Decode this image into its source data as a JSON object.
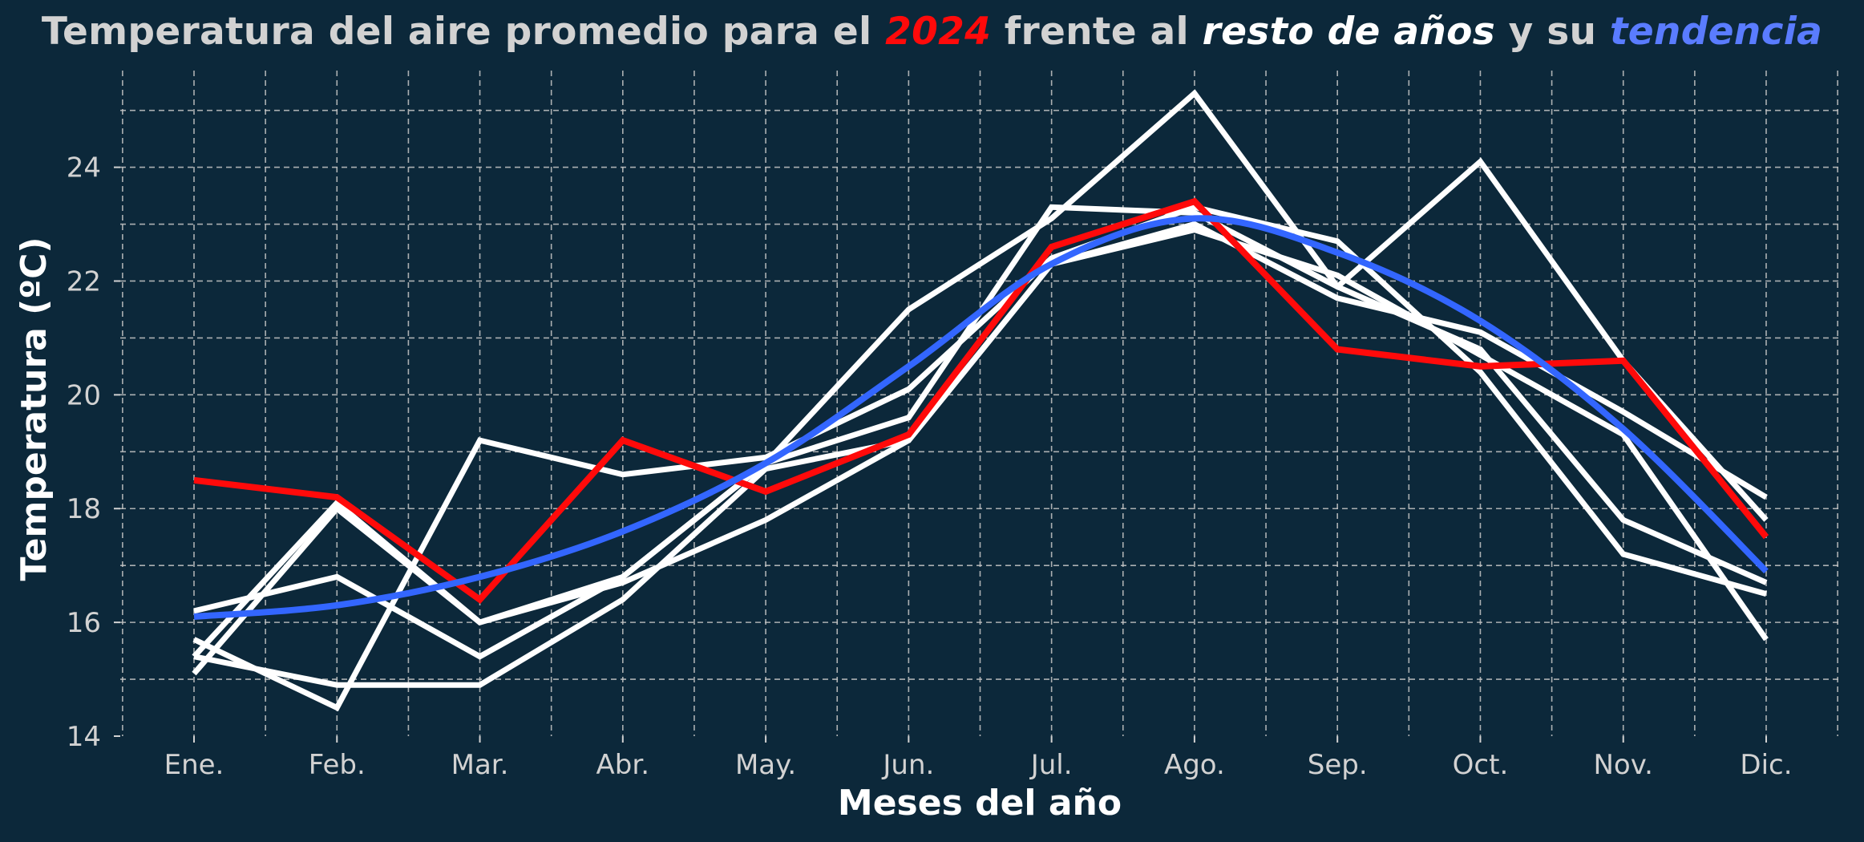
{
  "title": {
    "part1": "Temperatura del aire promedio para el ",
    "highlight_year": "2024",
    "part2": " frente al ",
    "highlight_rest": "resto de años",
    "part3": " y su ",
    "highlight_trend": "tendencia"
  },
  "chart_data": {
    "type": "line",
    "title": "Temperatura del aire promedio para el 2024 frente al resto de años y su tendencia",
    "xlabel": "Meses del año",
    "ylabel": "Temperatura (ºC)",
    "categories": [
      "Ene.",
      "Feb.",
      "Mar.",
      "Abr.",
      "May.",
      "Jun.",
      "Jul.",
      "Ago.",
      "Sep.",
      "Oct.",
      "Nov.",
      "Dic."
    ],
    "ylim": [
      14,
      25.7
    ],
    "yticks": [
      14,
      16,
      18,
      20,
      22,
      24
    ],
    "grid": "on",
    "colors": {
      "background": "#0c283a",
      "other_years": "#ffffff",
      "year_2024": "#ff0a0a",
      "trend": "#3366ff",
      "grid": "#c8c8c8",
      "text": "#d2d2d2"
    },
    "series": [
      {
        "values": [
          15.1,
          18.0,
          16.0,
          16.8,
          18.8,
          19.6,
          23.3,
          23.2,
          21.9,
          24.1,
          20.6,
          17.8
        ],
        "role": "other"
      },
      {
        "values": [
          16.2,
          16.8,
          15.4,
          16.8,
          18.8,
          21.5,
          23.1,
          25.3,
          21.9,
          20.8,
          17.8,
          16.7
        ],
        "role": "other"
      },
      {
        "values": [
          15.7,
          14.5,
          19.2,
          18.6,
          18.9,
          20.1,
          22.4,
          23.3,
          22.7,
          20.4,
          17.2,
          16.5
        ],
        "role": "other"
      },
      {
        "values": [
          15.4,
          14.9,
          14.9,
          16.4,
          18.7,
          19.2,
          22.3,
          23.0,
          21.7,
          21.1,
          19.7,
          18.2
        ],
        "role": "other"
      },
      {
        "values": [
          15.4,
          18.1,
          16.0,
          16.7,
          17.8,
          19.2,
          22.3,
          22.9,
          22.1,
          20.7,
          19.3,
          15.7
        ],
        "role": "other"
      },
      {
        "name": "2024",
        "values": [
          18.5,
          18.2,
          16.4,
          19.2,
          18.3,
          19.3,
          22.6,
          23.4,
          20.8,
          20.5,
          20.6,
          17.5
        ],
        "role": "highlight"
      },
      {
        "name": "tendencia",
        "values": [
          16.1,
          16.3,
          16.8,
          17.6,
          18.8,
          20.5,
          22.3,
          23.1,
          22.5,
          21.3,
          19.4,
          16.9
        ],
        "role": "trend"
      }
    ]
  }
}
